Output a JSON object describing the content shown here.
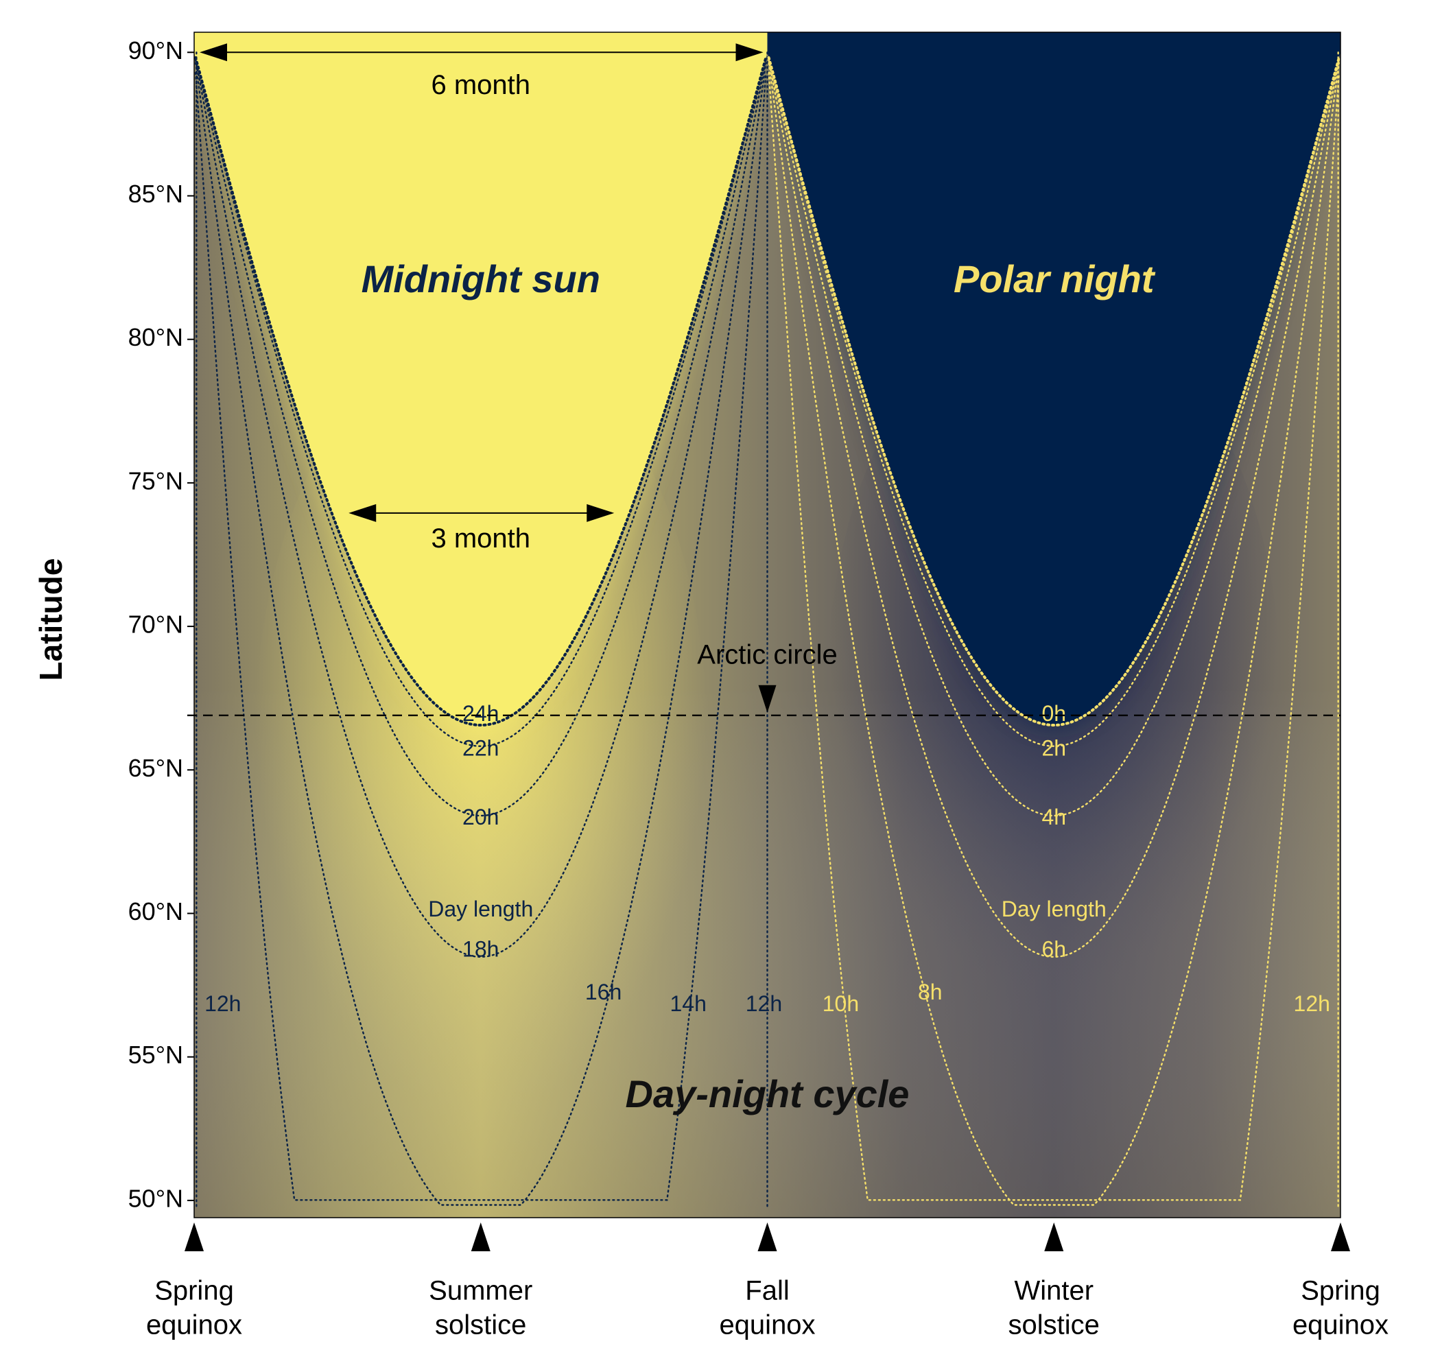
{
  "chart_data": {
    "type": "contour",
    "title": "",
    "xlabel": "",
    "ylabel": "Latitude",
    "xlim": [
      0,
      1
    ],
    "ylim": [
      49.4,
      90.7
    ],
    "y_ticks": [
      {
        "value": 50,
        "label": "50°N"
      },
      {
        "value": 55,
        "label": "55°N"
      },
      {
        "value": 60,
        "label": "60°N"
      },
      {
        "value": 65,
        "label": "65°N"
      },
      {
        "value": 70,
        "label": "70°N"
      },
      {
        "value": 75,
        "label": "75°N"
      },
      {
        "value": 80,
        "label": "80°N"
      },
      {
        "value": 85,
        "label": "85°N"
      },
      {
        "value": 90,
        "label": "90°N"
      }
    ],
    "seasons": [
      {
        "x": 0,
        "line1": "Spring",
        "line2": "equinox"
      },
      {
        "x": 0.25,
        "line1": "Summer",
        "line2": "solstice"
      },
      {
        "x": 0.5,
        "line1": "Fall",
        "line2": "equinox"
      },
      {
        "x": 0.75,
        "line1": "Winter",
        "line2": "solstice"
      },
      {
        "x": 1,
        "line1": "Spring",
        "line2": "equinox"
      }
    ],
    "regions": [
      {
        "name": "Midnight sun",
        "x": 0.25,
        "y": 82,
        "color": "#0b2347"
      },
      {
        "name": "Polar night",
        "x": 0.75,
        "y": 82,
        "color": "#f6e06a"
      },
      {
        "name": "Day-night cycle",
        "x": 0.5,
        "y": 53.6,
        "color": "#111111"
      }
    ],
    "colors": {
      "day": "#f8ee6e",
      "night": "#00204a",
      "neutral": "#8c8266",
      "dark_contour": "#0b2347",
      "light_contour": "#f6e06a"
    },
    "arctic_circle": {
      "lat": 66.9,
      "label": "Arctic circle",
      "marker_x": 0.5
    },
    "annotations": [
      {
        "label": "6 month",
        "y": 90.0,
        "x_start": 0.0,
        "x_end": 0.5,
        "label_y": 88.8
      },
      {
        "label": "3 month",
        "y": 73.95,
        "x_start": 0.13,
        "x_end": 0.37,
        "label_y": 73.0
      }
    ],
    "contours": [
      {
        "hours": 24,
        "label": "24h",
        "side": "summer",
        "label_x": 0.25,
        "label_y": 66.9
      },
      {
        "hours": 22,
        "label": "22h",
        "side": "summer",
        "label_x": 0.25,
        "label_y": 65.7
      },
      {
        "hours": 20,
        "label": "20h",
        "side": "summer",
        "label_x": 0.25,
        "label_y": 63.3
      },
      {
        "hours": 18,
        "label": "18h",
        "side": "summer",
        "label_x": 0.25,
        "label_y": 58.7,
        "prefix": "Day length",
        "prefix_y": 60.1
      },
      {
        "hours": 16,
        "label": "16h",
        "side": "summer",
        "label_x": 0.357,
        "label_y": 57.2
      },
      {
        "hours": 14,
        "label": "14h",
        "side": "summer",
        "label_x": 0.431,
        "label_y": 56.8
      },
      {
        "hours": 12,
        "label": "12h",
        "side": "equinox-left",
        "label_x": 0.025,
        "label_y": 56.8
      },
      {
        "hours": 12,
        "label": "12h",
        "side": "equinox-mid",
        "label_x": 0.497,
        "label_y": 56.8
      },
      {
        "hours": 10,
        "label": "10h",
        "side": "winter",
        "label_x": 0.564,
        "label_y": 56.8
      },
      {
        "hours": 8,
        "label": "8h",
        "side": "winter",
        "label_x": 0.642,
        "label_y": 57.2
      },
      {
        "hours": 6,
        "label": "6h",
        "side": "winter",
        "label_x": 0.75,
        "label_y": 58.7,
        "prefix": "Day length",
        "prefix_y": 60.1
      },
      {
        "hours": 4,
        "label": "4h",
        "side": "winter",
        "label_x": 0.75,
        "label_y": 63.3
      },
      {
        "hours": 2,
        "label": "2h",
        "side": "winter",
        "label_x": 0.75,
        "label_y": 65.7
      },
      {
        "hours": 0,
        "label": "0h",
        "side": "winter",
        "label_x": 0.75,
        "label_y": 66.9
      },
      {
        "hours": 12,
        "label": "12h",
        "side": "equinox-right",
        "label_x": 0.975,
        "label_y": 56.8
      }
    ]
  }
}
